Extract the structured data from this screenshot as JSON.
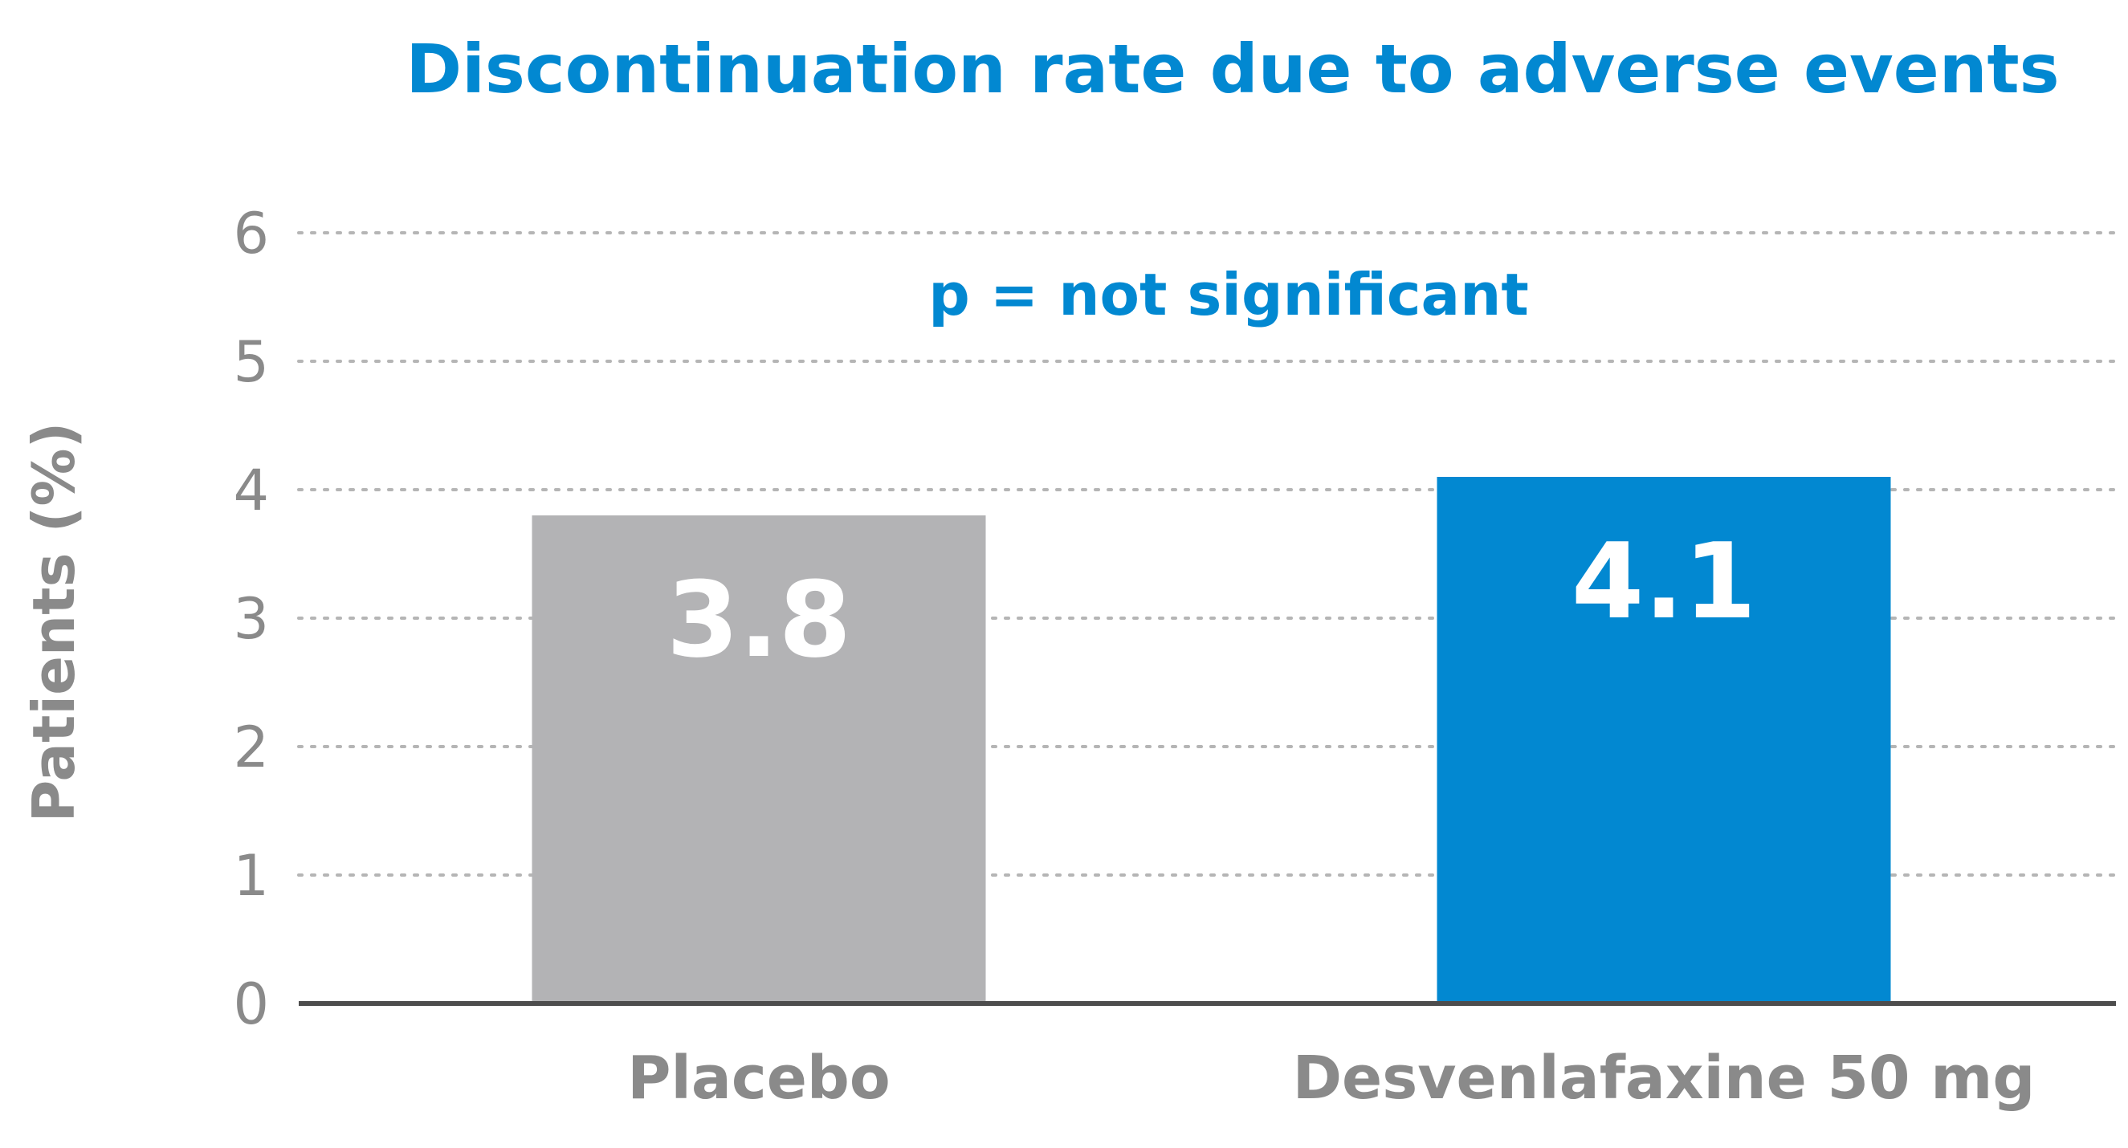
{
  "chart_data": {
    "type": "bar",
    "title": "Discontinuation rate due to adverse events",
    "annotation": "p = not significant",
    "xlabel": "",
    "ylabel": "Patients (%)",
    "categories": [
      "Placebo",
      "Desvenlafaxine 50 mg"
    ],
    "values": [
      3.8,
      4.1
    ],
    "data_labels": [
      "3.8",
      "4.1"
    ],
    "ylim": [
      0,
      6
    ],
    "yticks": [
      "0",
      "1",
      "2",
      "3",
      "4",
      "5",
      "6"
    ],
    "grid": true,
    "grid_style": "dotted",
    "colors": {
      "title": "#0288d1",
      "annotation": "#0288d1",
      "bars": [
        "#b3b3b5",
        "#0288d1"
      ],
      "data_label": "#ffffff",
      "axis_text": "#8a8a8a",
      "category_text": "#8a8a8a",
      "ylabel": "#8a8a8a",
      "axis_line": "#4d4d4d",
      "grid": "#b5b5b5"
    }
  }
}
